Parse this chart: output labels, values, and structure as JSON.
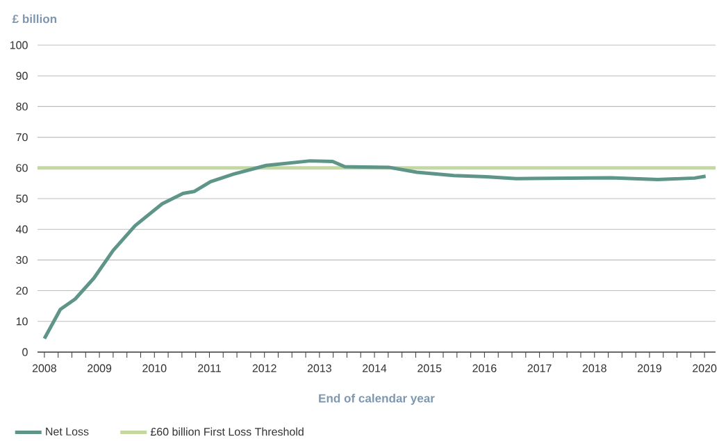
{
  "chart_data": {
    "type": "line",
    "ylabel": "£ billion",
    "xlabel": "End of calendar year",
    "x": [
      2008.0,
      2008.29,
      2008.56,
      2008.9,
      2009.25,
      2009.65,
      2010.14,
      2010.52,
      2010.72,
      2011.02,
      2011.44,
      2012.03,
      2012.83,
      2013.24,
      2013.46,
      2014.26,
      2014.77,
      2015.44,
      2016.03,
      2016.58,
      2018.3,
      2019.15,
      2019.82,
      2020.02
    ],
    "series": [
      {
        "name": "Net Loss",
        "color": "#5e9588",
        "values": [
          4.4,
          13.9,
          17.3,
          24.1,
          33.1,
          41.2,
          48.3,
          51.7,
          52.3,
          55.5,
          58.0,
          60.8,
          62.3,
          62.1,
          60.4,
          60.2,
          58.6,
          57.5,
          57.1,
          56.5,
          56.8,
          56.2,
          56.7,
          57.3
        ]
      }
    ],
    "ref_lines": [
      {
        "axis": "y",
        "value": 60,
        "label": "£60 billion First Loss Threshold",
        "color": "#c3d9a0"
      }
    ],
    "xlim": [
      2007.875,
      2020.2
    ],
    "ylim": [
      0,
      100
    ],
    "xticks": [
      2008,
      2009,
      2010,
      2011,
      2012,
      2013,
      2014,
      2015,
      2016,
      2017,
      2018,
      2019,
      2020
    ],
    "yticks": [
      0,
      10,
      20,
      30,
      40,
      50,
      60,
      70,
      80,
      90,
      100
    ],
    "grid": "y",
    "legend": "bottom left"
  }
}
